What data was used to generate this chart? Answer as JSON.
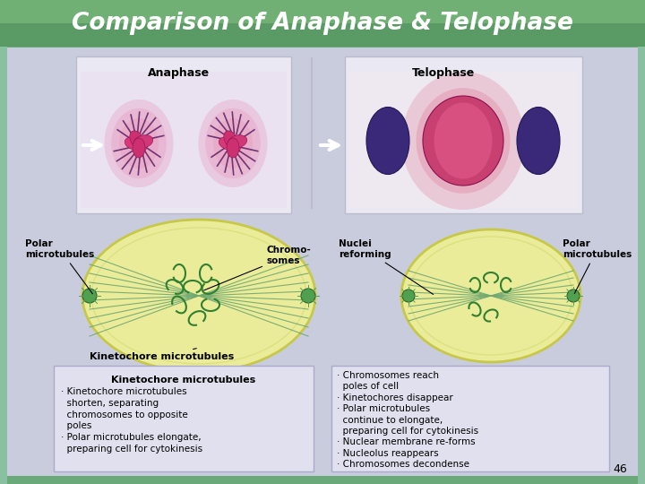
{
  "title": "Comparison of Anaphase & Telophase",
  "title_color": "#FFFFFF",
  "title_bg_top": "#6BAA70",
  "title_bg_bot": "#3A7A50",
  "slide_bg": "#C8CEDE",
  "outer_bg": "#6AAA7A",
  "left_label": "Anaphase",
  "right_label": "Telophase",
  "left_bullet_title": "Kinetochore microtubules",
  "left_bullets": [
    "· Kinetochore microtubules\n  shorten, separating\n  chromosomes to opposite\n  poles",
    "· Polar microtubules elongate,\n  preparing cell for cytokinesis"
  ],
  "right_bullets": [
    "· Chromosomes reach\n  poles of cell",
    "· Kinetochores disappear",
    "· Polar microtubules\n  continue to elongate,\n  preparing cell for cytokinesis",
    "· Nuclear membrane re-forms",
    "· Nucleolus reappears",
    "· Chromosomes decondense"
  ],
  "page_number": "46"
}
